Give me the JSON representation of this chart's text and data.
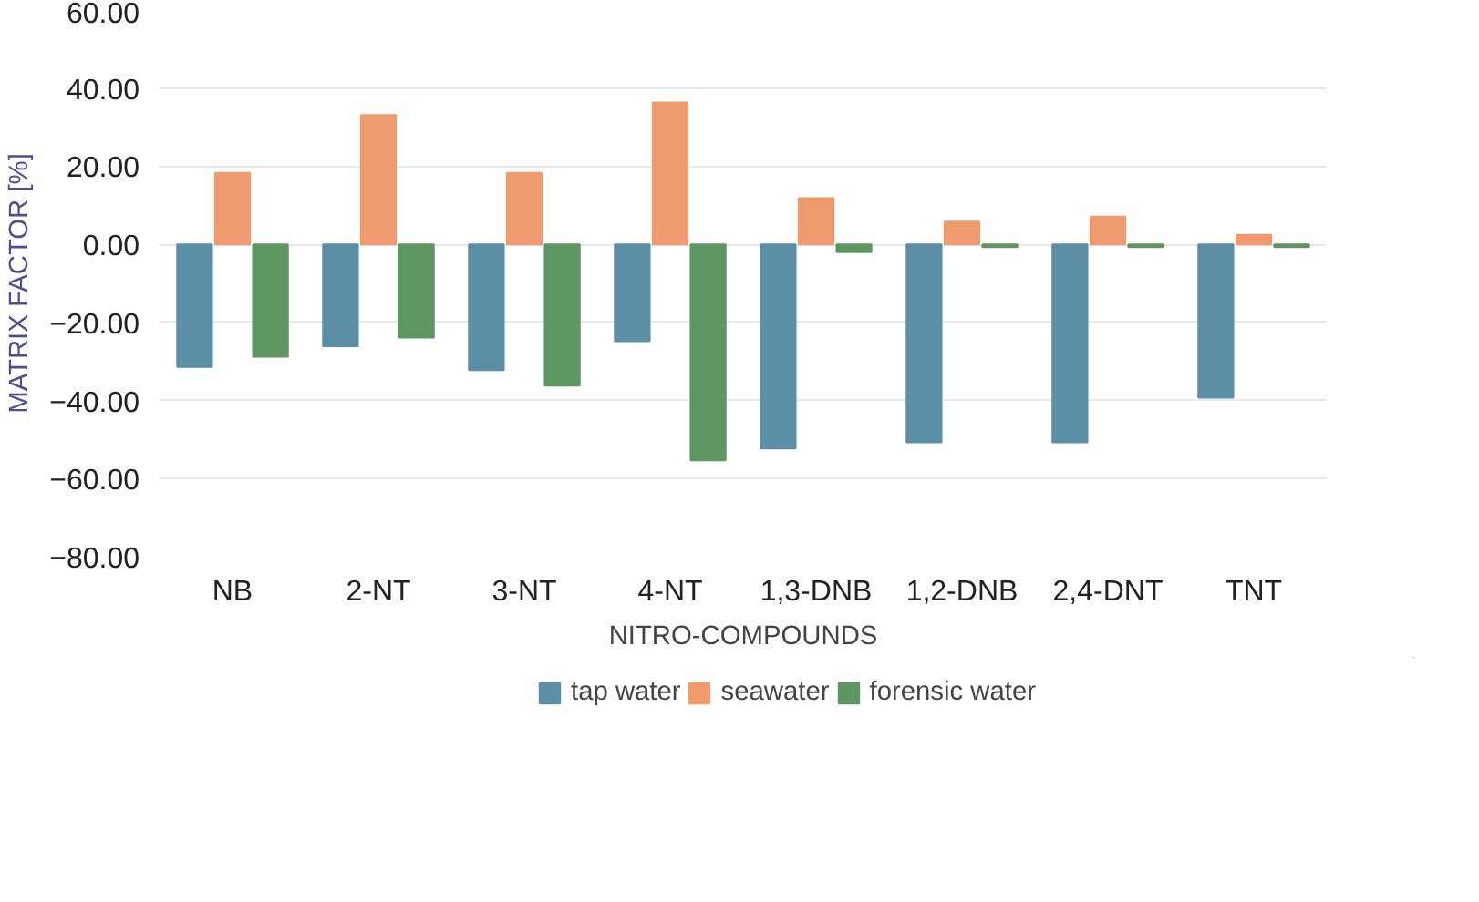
{
  "chart_data": {
    "type": "bar",
    "xlabel": "NITRO-COMPOUNDS",
    "ylabel": "MATRIX FACTOR [%]",
    "categories": [
      "NB",
      "2-NT",
      "3-NT",
      "4-NT",
      "1,3-DNB",
      "1,2-DNB",
      "2,4-DNT",
      "TNT"
    ],
    "series": [
      {
        "name": "tap water",
        "color": "#5b8fa8",
        "values": [
          -31.4,
          -26.1,
          -32.2,
          -24.8,
          -52.3,
          -50.7,
          -50.7,
          -39.3
        ]
      },
      {
        "name": "seawater",
        "color": "#f09b6e",
        "values": [
          18.3,
          33.1,
          18.3,
          36.3,
          11.8,
          5.8,
          7.1,
          2.4
        ]
      },
      {
        "name": "forensic water",
        "color": "#5e9662",
        "values": [
          -28.8,
          -23.9,
          -36.2,
          -55.3,
          -2.0,
          -0.7,
          -0.7,
          -0.7
        ]
      }
    ],
    "ylim": [
      -80,
      60
    ],
    "yticks": [
      {
        "value": -80,
        "label": "−80.00"
      },
      {
        "value": -60,
        "label": "−60.00"
      },
      {
        "value": -40,
        "label": "−40.00"
      },
      {
        "value": -20,
        "label": "−20.00"
      },
      {
        "value": 0,
        "label": "0.00"
      },
      {
        "value": 20,
        "label": "20.00"
      },
      {
        "value": 40,
        "label": "40.00"
      },
      {
        "value": 60,
        "label": "60.00"
      }
    ],
    "grid": "y",
    "legend": "bottom"
  }
}
